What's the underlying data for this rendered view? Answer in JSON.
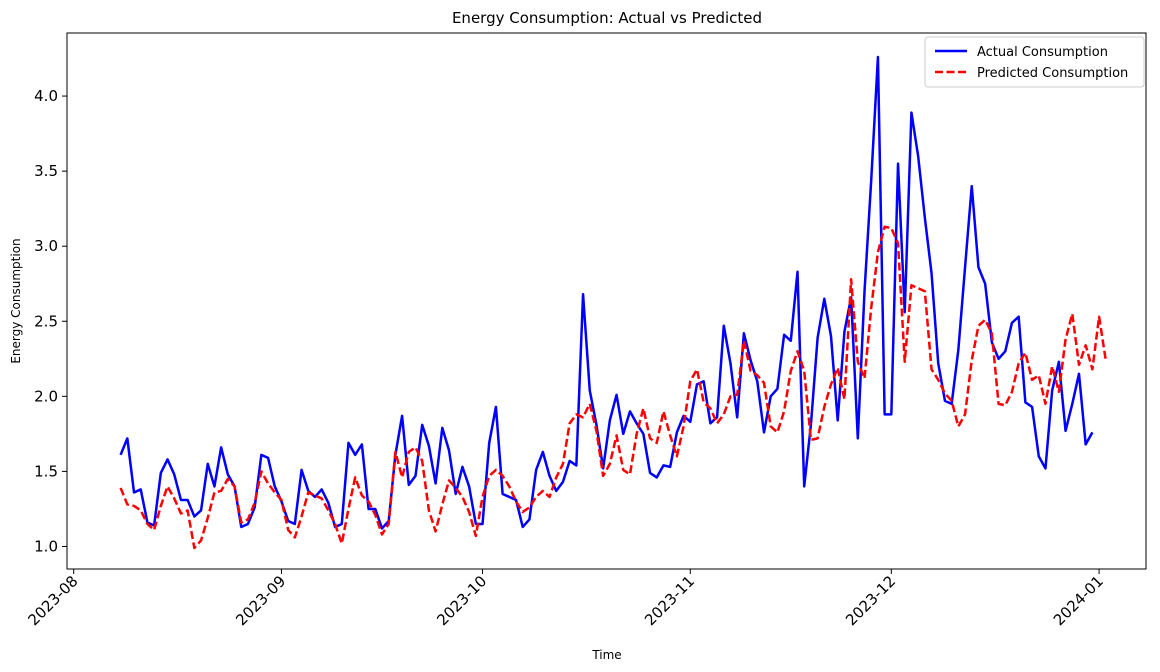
{
  "chart_data": {
    "type": "line",
    "title": "Energy Consumption: Actual vs Predicted",
    "xlabel": "Time",
    "ylabel": "Energy Consumption",
    "x_start": "2023-08-08",
    "x_end": "2023-12-31",
    "xlim": [
      "2023-07-31",
      "2024-01-08"
    ],
    "ylim": [
      0.85,
      4.42
    ],
    "x_ticks": [
      {
        "date": "2023-08-01",
        "label": "2023-08"
      },
      {
        "date": "2023-09-01",
        "label": "2023-09"
      },
      {
        "date": "2023-10-01",
        "label": "2023-10"
      },
      {
        "date": "2023-11-01",
        "label": "2023-11"
      },
      {
        "date": "2023-12-01",
        "label": "2023-12"
      },
      {
        "date": "2024-01-01",
        "label": "2024-01"
      }
    ],
    "y_ticks": [
      {
        "value": 1.0,
        "label": "1.0"
      },
      {
        "value": 1.5,
        "label": "1.5"
      },
      {
        "value": 2.0,
        "label": "2.0"
      },
      {
        "value": 2.5,
        "label": "2.5"
      },
      {
        "value": 3.0,
        "label": "3.0"
      },
      {
        "value": 3.5,
        "label": "3.5"
      },
      {
        "value": 4.0,
        "label": "4.0"
      }
    ],
    "grid": false,
    "legend_position": "top-right",
    "series": [
      {
        "name": "Actual Consumption",
        "color": "#0000ff",
        "style": "solid",
        "values": [
          1.61,
          1.72,
          1.36,
          1.38,
          1.16,
          1.14,
          1.49,
          1.58,
          1.48,
          1.31,
          1.31,
          1.2,
          1.24,
          1.55,
          1.4,
          1.66,
          1.48,
          1.4,
          1.13,
          1.15,
          1.26,
          1.61,
          1.59,
          1.4,
          1.3,
          1.17,
          1.15,
          1.51,
          1.37,
          1.33,
          1.38,
          1.29,
          1.13,
          1.15,
          1.69,
          1.61,
          1.68,
          1.25,
          1.25,
          1.12,
          1.17,
          1.61,
          1.87,
          1.41,
          1.47,
          1.81,
          1.67,
          1.42,
          1.79,
          1.64,
          1.35,
          1.53,
          1.4,
          1.15,
          1.15,
          1.69,
          1.93,
          1.35,
          1.33,
          1.31,
          1.13,
          1.18,
          1.51,
          1.63,
          1.47,
          1.37,
          1.43,
          1.57,
          1.54,
          2.68,
          2.04,
          1.81,
          1.52,
          1.84,
          2.01,
          1.75,
          1.9,
          1.82,
          1.75,
          1.49,
          1.46,
          1.54,
          1.53,
          1.76,
          1.87,
          1.83,
          2.08,
          2.1,
          1.82,
          1.86,
          2.47,
          2.22,
          1.86,
          2.42,
          2.24,
          2.1,
          1.76,
          2.0,
          2.05,
          2.41,
          2.37,
          2.83,
          1.4,
          1.81,
          2.39,
          2.65,
          2.4,
          1.84,
          2.43,
          2.66,
          1.72,
          2.7,
          3.44,
          4.26,
          1.88,
          1.88,
          3.55,
          2.56,
          3.89,
          3.6,
          3.19,
          2.82,
          2.22,
          1.97,
          1.95,
          2.31,
          2.86,
          3.4,
          2.86,
          2.75,
          2.36,
          2.25,
          2.3,
          2.49,
          2.53,
          1.96,
          1.93,
          1.6,
          1.52,
          2.04,
          2.23,
          1.77,
          1.95,
          2.15,
          1.68,
          1.76
        ]
      },
      {
        "name": "Predicted Consumption",
        "color": "#ff0000",
        "style": "dashed",
        "values": [
          1.39,
          1.28,
          1.27,
          1.24,
          1.15,
          1.11,
          1.27,
          1.4,
          1.32,
          1.22,
          1.24,
          0.99,
          1.04,
          1.19,
          1.36,
          1.37,
          1.45,
          1.4,
          1.16,
          1.18,
          1.29,
          1.5,
          1.42,
          1.36,
          1.31,
          1.11,
          1.06,
          1.2,
          1.36,
          1.34,
          1.32,
          1.24,
          1.15,
          1.02,
          1.25,
          1.46,
          1.34,
          1.3,
          1.21,
          1.08,
          1.15,
          1.63,
          1.46,
          1.63,
          1.66,
          1.57,
          1.24,
          1.1,
          1.28,
          1.44,
          1.39,
          1.33,
          1.23,
          1.07,
          1.33,
          1.47,
          1.51,
          1.47,
          1.4,
          1.3,
          1.23,
          1.26,
          1.33,
          1.37,
          1.33,
          1.46,
          1.55,
          1.82,
          1.88,
          1.86,
          1.95,
          1.77,
          1.47,
          1.55,
          1.74,
          1.51,
          1.48,
          1.75,
          1.92,
          1.72,
          1.69,
          1.9,
          1.74,
          1.6,
          1.8,
          2.1,
          2.18,
          1.96,
          1.92,
          1.82,
          1.88,
          2.0,
          2.01,
          2.37,
          2.17,
          2.14,
          2.09,
          1.8,
          1.76,
          1.9,
          2.17,
          2.3,
          2.17,
          1.71,
          1.72,
          1.93,
          2.08,
          2.19,
          1.98,
          2.78,
          2.23,
          2.12,
          2.59,
          2.96,
          3.13,
          3.12,
          3.02,
          2.23,
          2.74,
          2.72,
          2.7,
          2.18,
          2.11,
          2.02,
          1.97,
          1.8,
          1.88,
          2.24,
          2.47,
          2.51,
          2.42,
          1.95,
          1.94,
          2.03,
          2.22,
          2.29,
          2.11,
          2.14,
          1.95,
          2.2,
          2.03,
          2.38,
          2.55,
          2.21,
          2.34,
          2.18,
          2.53,
          2.24
        ]
      }
    ]
  }
}
